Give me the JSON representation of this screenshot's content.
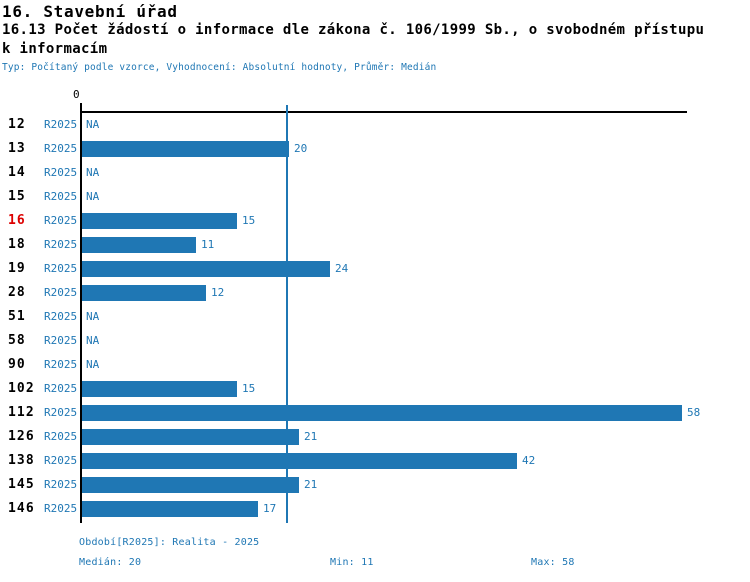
{
  "header": {
    "title_line1": "16. Stavební úřad",
    "title_line2": "16.13 Počet žádostí o informace dle zákona č. 106/1999 Sb., o svobodném přístupu",
    "title_line3": "k informacím",
    "meta": "Typ: Počítaný podle vzorce, Vyhodnocení: Absolutní hodnoty, Průměr: Medián"
  },
  "chart_data": {
    "type": "bar",
    "orientation": "horizontal",
    "title": "16.13 Počet žádostí o informace dle zákona č. 106/1999 Sb., o svobodném přístupu k informacím",
    "categories": [
      "12",
      "13",
      "14",
      "15",
      "16",
      "18",
      "19",
      "28",
      "51",
      "58",
      "90",
      "102",
      "112",
      "126",
      "138",
      "145",
      "146"
    ],
    "series": [
      {
        "name": "R2025",
        "values": [
          null,
          20,
          null,
          null,
          15,
          11,
          24,
          12,
          null,
          null,
          null,
          15,
          58,
          21,
          42,
          21,
          17
        ]
      }
    ],
    "na_text": "NA",
    "x_zero_tick_label": "0",
    "xlim": [
      0,
      58.6
    ],
    "median_line_value": 20,
    "highlighted_category": "16",
    "stats": {
      "median": 20,
      "min": 11,
      "max": 58
    },
    "colors": {
      "bar": "#1F77B4",
      "value_text": "#1F77B4",
      "series_text": "#1F77B4",
      "meta_text": "#1F77B4",
      "median_line": "#1F77B4",
      "highlight_category": "#DC0000",
      "category_text": "#000000",
      "axis": "#000000"
    },
    "legend_position": "none",
    "grid": false
  },
  "footer": {
    "period": "Období[R2025]: Realita - 2025",
    "median": "Medián: 20",
    "min": "Min: 11",
    "max": "Max: 58"
  }
}
